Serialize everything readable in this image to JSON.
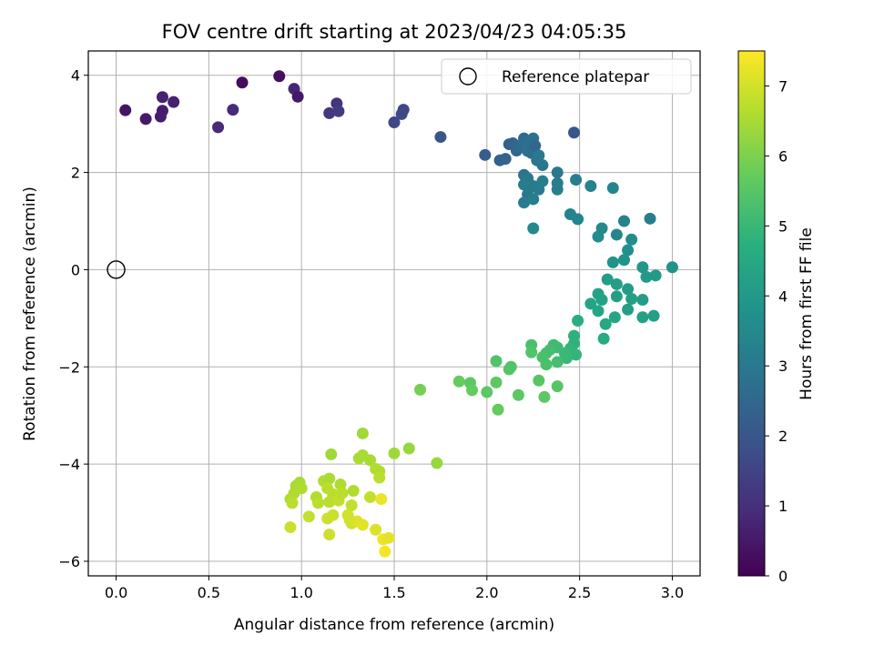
{
  "chart_data": {
    "type": "scatter",
    "title": "FOV centre drift starting at 2023/04/23 04:05:35",
    "xlabel": "Angular distance from reference (arcmin)",
    "ylabel": "Rotation from reference (arcmin)",
    "xlim": [
      -0.15,
      3.15
    ],
    "ylim": [
      -6.3,
      4.5
    ],
    "xticks": [
      "0.0",
      "0.5",
      "1.0",
      "1.5",
      "2.0",
      "2.5",
      "3.0"
    ],
    "yticks": [
      "−6",
      "−4",
      "−2",
      "0",
      "2",
      "4"
    ],
    "grid": true,
    "legend": {
      "position": "top-right",
      "entries": [
        "Reference platepar"
      ]
    },
    "reference_point": {
      "x": 0.0,
      "y": 0.0,
      "label": "Reference platepar"
    },
    "colorbar": {
      "label": "Hours from first FF file",
      "colormap": "viridis",
      "range": [
        0,
        7.5
      ],
      "ticks": [
        "0",
        "1",
        "2",
        "3",
        "4",
        "5",
        "6",
        "7"
      ]
    },
    "series": [
      {
        "color_by": "hours",
        "points": [
          {
            "x": 0.05,
            "y": 3.28,
            "h": 0.4
          },
          {
            "x": 0.16,
            "y": 3.1,
            "h": 0.5
          },
          {
            "x": 0.24,
            "y": 3.15,
            "h": 0.6
          },
          {
            "x": 0.25,
            "y": 3.27,
            "h": 0.6
          },
          {
            "x": 0.25,
            "y": 3.55,
            "h": 0.7
          },
          {
            "x": 0.31,
            "y": 3.45,
            "h": 0.7
          },
          {
            "x": 0.55,
            "y": 2.93,
            "h": 0.9
          },
          {
            "x": 0.63,
            "y": 3.29,
            "h": 0.9
          },
          {
            "x": 0.68,
            "y": 3.85,
            "h": 0.2
          },
          {
            "x": 0.88,
            "y": 3.98,
            "h": 0.3
          },
          {
            "x": 0.96,
            "y": 3.72,
            "h": 0.8
          },
          {
            "x": 0.98,
            "y": 3.56,
            "h": 0.5
          },
          {
            "x": 1.15,
            "y": 3.22,
            "h": 1.2
          },
          {
            "x": 1.19,
            "y": 3.42,
            "h": 1.1
          },
          {
            "x": 1.2,
            "y": 3.26,
            "h": 1.3
          },
          {
            "x": 1.5,
            "y": 3.03,
            "h": 1.6
          },
          {
            "x": 1.54,
            "y": 3.2,
            "h": 1.7
          },
          {
            "x": 1.55,
            "y": 3.29,
            "h": 1.6
          },
          {
            "x": 1.75,
            "y": 2.73,
            "h": 2.0
          },
          {
            "x": 1.99,
            "y": 2.36,
            "h": 2.2
          },
          {
            "x": 2.07,
            "y": 2.25,
            "h": 2.3
          },
          {
            "x": 2.1,
            "y": 2.28,
            "h": 2.4
          },
          {
            "x": 2.12,
            "y": 2.58,
            "h": 2.3
          },
          {
            "x": 2.14,
            "y": 2.6,
            "h": 2.4
          },
          {
            "x": 2.16,
            "y": 2.45,
            "h": 2.5
          },
          {
            "x": 2.18,
            "y": 2.55,
            "h": 2.6
          },
          {
            "x": 2.2,
            "y": 2.7,
            "h": 2.6
          },
          {
            "x": 2.21,
            "y": 2.6,
            "h": 2.7
          },
          {
            "x": 2.22,
            "y": 2.44,
            "h": 2.8
          },
          {
            "x": 2.24,
            "y": 2.4,
            "h": 2.7
          },
          {
            "x": 2.25,
            "y": 2.7,
            "h": 2.8
          },
          {
            "x": 2.26,
            "y": 2.55,
            "h": 2.5
          },
          {
            "x": 2.27,
            "y": 2.25,
            "h": 2.9
          },
          {
            "x": 2.28,
            "y": 2.35,
            "h": 3.0
          },
          {
            "x": 2.3,
            "y": 2.15,
            "h": 3.0
          },
          {
            "x": 2.2,
            "y": 1.95,
            "h": 2.9
          },
          {
            "x": 2.22,
            "y": 1.88,
            "h": 3.0
          },
          {
            "x": 2.2,
            "y": 1.75,
            "h": 3.1
          },
          {
            "x": 2.25,
            "y": 1.72,
            "h": 3.0
          },
          {
            "x": 2.28,
            "y": 1.65,
            "h": 3.1
          },
          {
            "x": 2.3,
            "y": 1.82,
            "h": 3.2
          },
          {
            "x": 2.22,
            "y": 1.55,
            "h": 3.0
          },
          {
            "x": 2.2,
            "y": 1.38,
            "h": 3.1
          },
          {
            "x": 2.25,
            "y": 1.45,
            "h": 3.2
          },
          {
            "x": 2.38,
            "y": 2.0,
            "h": 3.0
          },
          {
            "x": 2.38,
            "y": 1.78,
            "h": 3.1
          },
          {
            "x": 2.38,
            "y": 1.65,
            "h": 3.2
          },
          {
            "x": 2.47,
            "y": 2.82,
            "h": 2.0
          },
          {
            "x": 2.48,
            "y": 1.85,
            "h": 3.2
          },
          {
            "x": 2.56,
            "y": 1.72,
            "h": 3.3
          },
          {
            "x": 2.68,
            "y": 1.68,
            "h": 3.4
          },
          {
            "x": 2.25,
            "y": 0.85,
            "h": 3.5
          },
          {
            "x": 2.45,
            "y": 1.14,
            "h": 3.3
          },
          {
            "x": 2.49,
            "y": 1.04,
            "h": 3.4
          },
          {
            "x": 2.6,
            "y": 0.68,
            "h": 3.6
          },
          {
            "x": 2.62,
            "y": 0.85,
            "h": 3.5
          },
          {
            "x": 2.7,
            "y": 0.72,
            "h": 3.4
          },
          {
            "x": 2.74,
            "y": 1.0,
            "h": 3.3
          },
          {
            "x": 2.88,
            "y": 1.05,
            "h": 3.2
          },
          {
            "x": 2.76,
            "y": 0.4,
            "h": 3.7
          },
          {
            "x": 2.78,
            "y": 0.62,
            "h": 3.6
          },
          {
            "x": 2.68,
            "y": 0.15,
            "h": 3.8
          },
          {
            "x": 2.74,
            "y": 0.2,
            "h": 3.8
          },
          {
            "x": 2.84,
            "y": 0.05,
            "h": 3.9
          },
          {
            "x": 2.86,
            "y": -0.15,
            "h": 4.0
          },
          {
            "x": 2.91,
            "y": -0.12,
            "h": 4.0
          },
          {
            "x": 3.0,
            "y": 0.05,
            "h": 3.8
          },
          {
            "x": 2.65,
            "y": -0.2,
            "h": 4.1
          },
          {
            "x": 2.7,
            "y": -0.3,
            "h": 4.2
          },
          {
            "x": 2.6,
            "y": -0.5,
            "h": 4.3
          },
          {
            "x": 2.56,
            "y": -0.7,
            "h": 4.4
          },
          {
            "x": 2.6,
            "y": -0.85,
            "h": 4.4
          },
          {
            "x": 2.62,
            "y": -0.62,
            "h": 4.3
          },
          {
            "x": 2.7,
            "y": -0.55,
            "h": 4.2
          },
          {
            "x": 2.76,
            "y": -0.4,
            "h": 4.1
          },
          {
            "x": 2.78,
            "y": -0.6,
            "h": 4.2
          },
          {
            "x": 2.76,
            "y": -0.82,
            "h": 4.2
          },
          {
            "x": 2.84,
            "y": -0.62,
            "h": 4.1
          },
          {
            "x": 2.84,
            "y": -0.98,
            "h": 4.3
          },
          {
            "x": 2.9,
            "y": -0.95,
            "h": 4.2
          },
          {
            "x": 2.69,
            "y": -0.98,
            "h": 4.4
          },
          {
            "x": 2.64,
            "y": -1.12,
            "h": 4.5
          },
          {
            "x": 2.63,
            "y": -1.42,
            "h": 4.6
          },
          {
            "x": 2.49,
            "y": -1.05,
            "h": 4.7
          },
          {
            "x": 2.47,
            "y": -1.36,
            "h": 4.8
          },
          {
            "x": 2.47,
            "y": -1.52,
            "h": 4.8
          },
          {
            "x": 2.45,
            "y": -1.62,
            "h": 4.9
          },
          {
            "x": 2.42,
            "y": -1.72,
            "h": 5.0
          },
          {
            "x": 2.48,
            "y": -1.75,
            "h": 4.9
          },
          {
            "x": 2.43,
            "y": -1.82,
            "h": 5.0
          },
          {
            "x": 2.38,
            "y": -1.6,
            "h": 5.1
          },
          {
            "x": 2.36,
            "y": -1.55,
            "h": 5.1
          },
          {
            "x": 2.34,
            "y": -1.65,
            "h": 5.2
          },
          {
            "x": 2.32,
            "y": -1.72,
            "h": 5.2
          },
          {
            "x": 2.3,
            "y": -1.8,
            "h": 5.3
          },
          {
            "x": 2.32,
            "y": -1.95,
            "h": 5.3
          },
          {
            "x": 2.24,
            "y": -1.55,
            "h": 5.3
          },
          {
            "x": 2.24,
            "y": -1.7,
            "h": 5.4
          },
          {
            "x": 2.38,
            "y": -1.9,
            "h": 5.2
          },
          {
            "x": 2.05,
            "y": -1.88,
            "h": 5.4
          },
          {
            "x": 2.12,
            "y": -2.05,
            "h": 5.5
          },
          {
            "x": 2.13,
            "y": -2.0,
            "h": 5.4
          },
          {
            "x": 2.05,
            "y": -2.32,
            "h": 5.6
          },
          {
            "x": 1.85,
            "y": -2.3,
            "h": 5.7
          },
          {
            "x": 1.91,
            "y": -2.33,
            "h": 5.6
          },
          {
            "x": 1.92,
            "y": -2.48,
            "h": 5.7
          },
          {
            "x": 2.0,
            "y": -2.52,
            "h": 5.6
          },
          {
            "x": 2.17,
            "y": -2.58,
            "h": 5.6
          },
          {
            "x": 2.28,
            "y": -2.28,
            "h": 5.5
          },
          {
            "x": 2.31,
            "y": -2.62,
            "h": 5.6
          },
          {
            "x": 2.38,
            "y": -2.4,
            "h": 5.5
          },
          {
            "x": 2.06,
            "y": -2.88,
            "h": 5.7
          },
          {
            "x": 1.64,
            "y": -2.47,
            "h": 5.9
          },
          {
            "x": 1.73,
            "y": -3.98,
            "h": 6.3
          },
          {
            "x": 1.58,
            "y": -3.68,
            "h": 6.3
          },
          {
            "x": 1.5,
            "y": -3.78,
            "h": 6.4
          },
          {
            "x": 1.33,
            "y": -3.37,
            "h": 6.4
          },
          {
            "x": 1.16,
            "y": -3.8,
            "h": 6.4
          },
          {
            "x": 1.31,
            "y": -3.88,
            "h": 6.5
          },
          {
            "x": 1.33,
            "y": -3.82,
            "h": 6.5
          },
          {
            "x": 1.37,
            "y": -3.92,
            "h": 6.5
          },
          {
            "x": 1.4,
            "y": -4.1,
            "h": 6.6
          },
          {
            "x": 1.42,
            "y": -4.15,
            "h": 6.6
          },
          {
            "x": 1.42,
            "y": -4.28,
            "h": 6.7
          },
          {
            "x": 0.97,
            "y": -4.45,
            "h": 6.5
          },
          {
            "x": 0.99,
            "y": -4.38,
            "h": 6.5
          },
          {
            "x": 0.96,
            "y": -4.6,
            "h": 6.6
          },
          {
            "x": 1.0,
            "y": -4.5,
            "h": 6.6
          },
          {
            "x": 0.94,
            "y": -4.72,
            "h": 6.6
          },
          {
            "x": 0.95,
            "y": -4.8,
            "h": 6.7
          },
          {
            "x": 1.08,
            "y": -4.68,
            "h": 6.6
          },
          {
            "x": 1.09,
            "y": -4.8,
            "h": 6.7
          },
          {
            "x": 1.12,
            "y": -4.35,
            "h": 6.6
          },
          {
            "x": 1.15,
            "y": -4.3,
            "h": 6.5
          },
          {
            "x": 1.14,
            "y": -4.5,
            "h": 6.7
          },
          {
            "x": 1.17,
            "y": -4.62,
            "h": 6.7
          },
          {
            "x": 1.15,
            "y": -4.78,
            "h": 6.7
          },
          {
            "x": 1.2,
            "y": -4.75,
            "h": 6.8
          },
          {
            "x": 1.21,
            "y": -4.42,
            "h": 6.6
          },
          {
            "x": 1.22,
            "y": -4.6,
            "h": 6.7
          },
          {
            "x": 1.28,
            "y": -4.55,
            "h": 6.6
          },
          {
            "x": 1.37,
            "y": -4.68,
            "h": 6.8
          },
          {
            "x": 1.43,
            "y": -4.72,
            "h": 7.3
          },
          {
            "x": 1.27,
            "y": -4.85,
            "h": 6.8
          },
          {
            "x": 1.04,
            "y": -5.08,
            "h": 6.8
          },
          {
            "x": 1.14,
            "y": -5.12,
            "h": 6.9
          },
          {
            "x": 1.17,
            "y": -5.05,
            "h": 6.9
          },
          {
            "x": 1.25,
            "y": -5.05,
            "h": 7.0
          },
          {
            "x": 1.26,
            "y": -5.15,
            "h": 7.0
          },
          {
            "x": 1.27,
            "y": -5.22,
            "h": 7.0
          },
          {
            "x": 1.3,
            "y": -5.18,
            "h": 7.1
          },
          {
            "x": 0.94,
            "y": -5.3,
            "h": 6.9
          },
          {
            "x": 1.15,
            "y": -5.45,
            "h": 6.9
          },
          {
            "x": 1.33,
            "y": -5.25,
            "h": 7.2
          },
          {
            "x": 1.4,
            "y": -5.35,
            "h": 7.1
          },
          {
            "x": 1.44,
            "y": -5.55,
            "h": 7.3
          },
          {
            "x": 1.47,
            "y": -5.52,
            "h": 7.2
          },
          {
            "x": 1.45,
            "y": -5.8,
            "h": 7.4
          }
        ]
      }
    ]
  }
}
